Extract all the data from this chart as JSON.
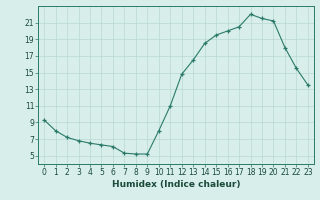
{
  "x": [
    0,
    1,
    2,
    3,
    4,
    5,
    6,
    7,
    8,
    9,
    10,
    11,
    12,
    13,
    14,
    15,
    16,
    17,
    18,
    19,
    20,
    21,
    22,
    23
  ],
  "y": [
    9.3,
    8.0,
    7.2,
    6.8,
    6.5,
    6.3,
    6.1,
    5.3,
    5.2,
    5.2,
    8.0,
    11.0,
    14.8,
    16.5,
    18.5,
    19.5,
    20.0,
    20.5,
    22.0,
    21.5,
    21.2,
    18.0,
    15.5,
    13.5
  ],
  "line_color": "#2a7a6a",
  "marker_color": "#2a7a6a",
  "bg_color": "#d8eeea",
  "grid_color": "#b8d8d2",
  "axis_label": "Humidex (Indice chaleur)",
  "yticks": [
    5,
    7,
    9,
    11,
    13,
    15,
    17,
    19,
    21
  ],
  "ylim": [
    4.0,
    23.0
  ],
  "xlim": [
    -0.5,
    23.5
  ],
  "xlabel_fontsize": 6.5,
  "tick_fontsize": 5.5
}
